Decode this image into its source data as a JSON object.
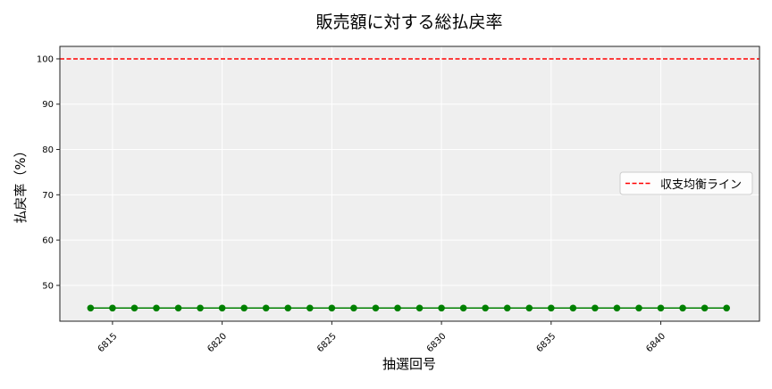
{
  "chart_data": {
    "type": "line",
    "title": "販売額に対する総払戻率",
    "xlabel": "抽選回号",
    "ylabel": "払戻率（%）",
    "xlim": [
      6812.6,
      6844.5
    ],
    "ylim": [
      42.1,
      102.75
    ],
    "xticks": [
      6815,
      6820,
      6825,
      6830,
      6835,
      6840
    ],
    "yticks": [
      50,
      60,
      70,
      80,
      90,
      100
    ],
    "grid": true,
    "legend_position": "right",
    "series": [
      {
        "color": "#008000",
        "marker": "circle",
        "x": [
          6814,
          6815,
          6816,
          6817,
          6818,
          6819,
          6820,
          6821,
          6822,
          6823,
          6824,
          6825,
          6826,
          6827,
          6828,
          6829,
          6830,
          6831,
          6832,
          6833,
          6834,
          6835,
          6836,
          6837,
          6838,
          6839,
          6840,
          6841,
          6842,
          6843
        ],
        "y": [
          45,
          45,
          45,
          45,
          45,
          45,
          45,
          45,
          45,
          45,
          45,
          45,
          45,
          45,
          45,
          45,
          45,
          45,
          45,
          45,
          45,
          45,
          45,
          45,
          45,
          45,
          45,
          45,
          45,
          45
        ]
      }
    ],
    "reference_lines": [
      {
        "name": "収支均衡ライン",
        "y": 100,
        "color": "#ff0000",
        "style": "dashed"
      }
    ]
  }
}
